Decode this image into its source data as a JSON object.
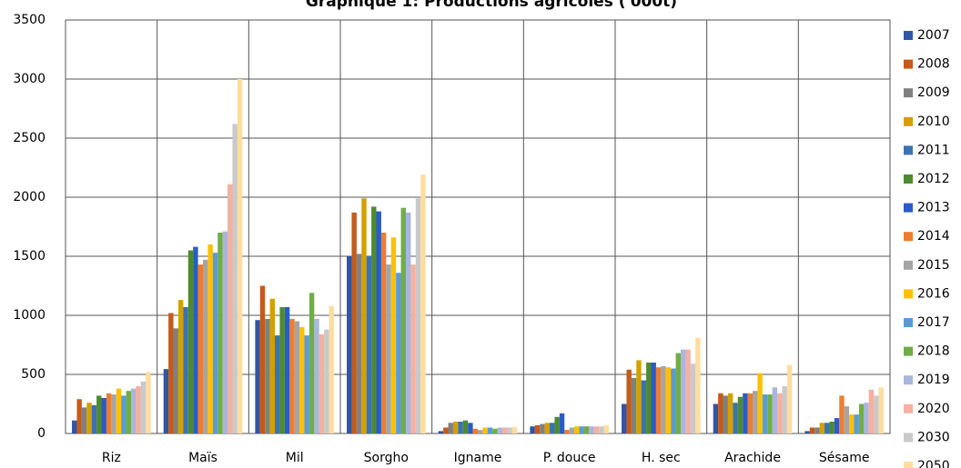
{
  "chart_data": {
    "type": "bar",
    "title": "Graphique 1: Productions agricoles ('000t)",
    "categories": [
      "Riz",
      "Maïs",
      "Mil",
      "Sorgho",
      "Igname",
      "P. douce",
      "H. sec",
      "Arachide",
      "Sésame"
    ],
    "ylim": [
      0,
      3500
    ],
    "yticks": [
      0,
      500,
      1000,
      1500,
      2000,
      2500,
      3000,
      3500
    ],
    "grid": true,
    "legend": "right",
    "series": [
      {
        "name": "2007",
        "color": "#2f55a4",
        "values": [
          110,
          545,
          960,
          1500,
          20,
          60,
          250,
          250,
          20
        ]
      },
      {
        "name": "2008",
        "color": "#c55a1a",
        "values": [
          290,
          1020,
          1250,
          1870,
          50,
          70,
          540,
          340,
          50
        ]
      },
      {
        "name": "2009",
        "color": "#808080",
        "values": [
          220,
          890,
          970,
          1520,
          90,
          80,
          470,
          320,
          50
        ]
      },
      {
        "name": "2010",
        "color": "#d4a000",
        "values": [
          260,
          1130,
          1140,
          1990,
          100,
          90,
          620,
          340,
          90
        ]
      },
      {
        "name": "2011",
        "color": "#3a73b0",
        "values": [
          240,
          1070,
          830,
          1500,
          100,
          90,
          450,
          260,
          90
        ]
      },
      {
        "name": "2012",
        "color": "#4e8a2e",
        "values": [
          320,
          1550,
          1070,
          1920,
          110,
          140,
          600,
          310,
          100
        ]
      },
      {
        "name": "2013",
        "color": "#2a5cc6",
        "values": [
          300,
          1580,
          1070,
          1880,
          90,
          170,
          600,
          340,
          130
        ]
      },
      {
        "name": "2014",
        "color": "#ed7d31",
        "values": [
          340,
          1430,
          970,
          1700,
          40,
          30,
          560,
          340,
          320
        ]
      },
      {
        "name": "2015",
        "color": "#a5a5a5",
        "values": [
          330,
          1470,
          950,
          1430,
          30,
          50,
          570,
          360,
          230
        ]
      },
      {
        "name": "2016",
        "color": "#ffc000",
        "values": [
          380,
          1600,
          900,
          1660,
          50,
          60,
          560,
          510,
          160
        ]
      },
      {
        "name": "2017",
        "color": "#5b9bd5",
        "values": [
          320,
          1530,
          830,
          1360,
          50,
          60,
          550,
          330,
          160
        ]
      },
      {
        "name": "2018",
        "color": "#70ad47",
        "values": [
          360,
          1700,
          1190,
          1910,
          40,
          60,
          680,
          330,
          250
        ]
      },
      {
        "name": "2019",
        "color": "#a9b6dd",
        "values": [
          380,
          1710,
          970,
          1870,
          50,
          60,
          710,
          390,
          260
        ]
      },
      {
        "name": "2020",
        "color": "#f4b0a0",
        "values": [
          400,
          2110,
          840,
          1430,
          50,
          60,
          710,
          340,
          370
        ]
      },
      {
        "name": "2030",
        "color": "#c9c9c9",
        "values": [
          440,
          2620,
          880,
          1990,
          50,
          60,
          590,
          400,
          320
        ]
      },
      {
        "name": "2050",
        "color": "#ffdca0",
        "values": [
          520,
          3000,
          1080,
          2190,
          55,
          70,
          810,
          580,
          390
        ]
      }
    ]
  }
}
